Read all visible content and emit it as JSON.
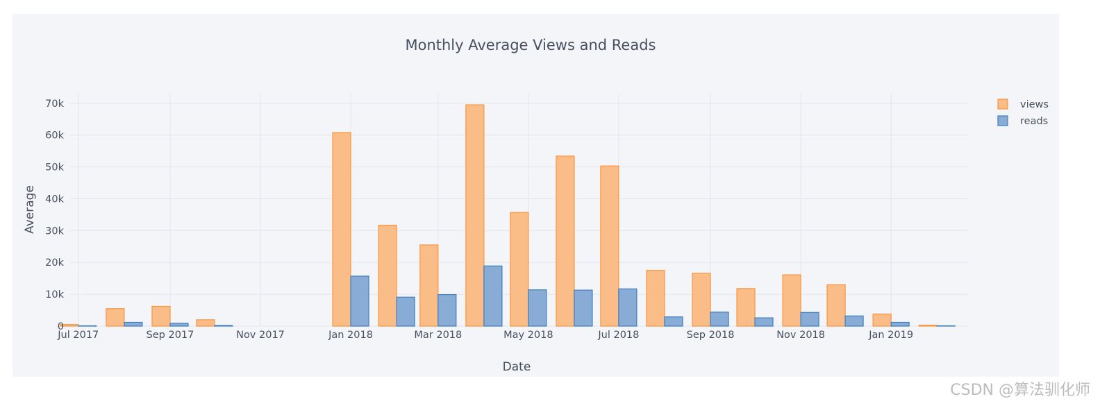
{
  "chart_data": {
    "type": "bar",
    "title": "Monthly Average Views and Reads",
    "xlabel": "Date",
    "ylabel": "Average",
    "x_ticks": [
      "Jul 2017",
      "Sep 2017",
      "Nov 2017",
      "Jan 2018",
      "Mar 2018",
      "May 2018",
      "Jul 2018",
      "Sep 2018",
      "Nov 2018",
      "Jan 2019"
    ],
    "y_ticks": [
      "0",
      "10k",
      "20k",
      "30k",
      "40k",
      "50k",
      "60k",
      "70k"
    ],
    "ylim": [
      0,
      73000
    ],
    "x_range": [
      "2017-06-25",
      "2019-02-22"
    ],
    "categories": [
      "2017-07-01",
      "2017-08-01",
      "2017-09-01",
      "2017-10-01",
      "2017-11-01",
      "2017-12-01",
      "2018-01-01",
      "2018-02-01",
      "2018-03-01",
      "2018-04-01",
      "2018-05-01",
      "2018-06-01",
      "2018-07-01",
      "2018-08-01",
      "2018-09-01",
      "2018-10-01",
      "2018-11-01",
      "2018-12-01",
      "2019-01-01",
      "2019-02-01"
    ],
    "series": [
      {
        "name": "views",
        "color": "#fbbd87",
        "border": "#f7953f",
        "values": [
          500,
          5500,
          6200,
          2000,
          0,
          0,
          60800,
          31700,
          25500,
          69500,
          35700,
          53400,
          50300,
          17500,
          16600,
          11800,
          16100,
          13000,
          3800,
          300
        ]
      },
      {
        "name": "reads",
        "color": "#88acd6",
        "border": "#3d7ebd",
        "values": [
          100,
          1200,
          900,
          200,
          0,
          0,
          15700,
          9100,
          9900,
          18900,
          11400,
          11300,
          11700,
          2900,
          4400,
          2600,
          4300,
          3200,
          1200,
          100
        ]
      }
    ],
    "grid": true,
    "legend_position": "top-right"
  },
  "watermark": "CSDN @算法驯化师"
}
